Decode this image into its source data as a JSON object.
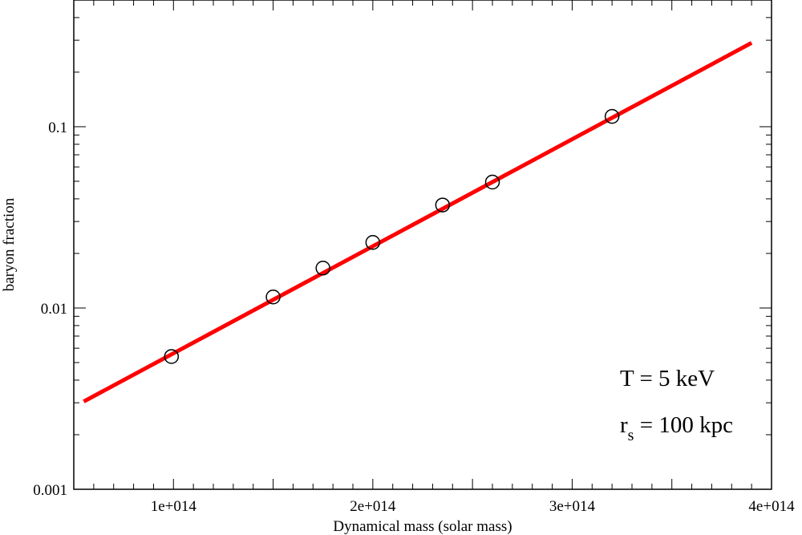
{
  "colors": {
    "fit_line": "#ff0000",
    "markers": "#000000",
    "axes": "#000000",
    "background": "#ffffff"
  },
  "chart_data": {
    "type": "scatter",
    "xlabel": "Dynamical mass (solar mass)",
    "ylabel": "baryon fraction",
    "xlim": [
      50000000000000.0,
      400000000000000.0
    ],
    "ylim": [
      0.001,
      0.5
    ],
    "yscale": "log",
    "grid": false,
    "x_ticks": [
      {
        "value": 100000000000000.0,
        "label": "1e+014"
      },
      {
        "value": 200000000000000.0,
        "label": "2e+014"
      },
      {
        "value": 300000000000000.0,
        "label": "3e+014"
      },
      {
        "value": 400000000000000.0,
        "label": "4e+014"
      }
    ],
    "y_ticks": [
      {
        "value": 0.001,
        "label": "0.001"
      },
      {
        "value": 0.01,
        "label": "0.01"
      },
      {
        "value": 0.1,
        "label": "0.1"
      }
    ],
    "series": [
      {
        "marker": "open-circle",
        "x": [
          99000000000000.0,
          150000000000000.0,
          175000000000000.0,
          200000000000000.0,
          235000000000000.0,
          260000000000000.0,
          320000000000000.0
        ],
        "y": [
          0.0054,
          0.0115,
          0.0166,
          0.023,
          0.037,
          0.0495,
          0.114
        ]
      },
      {
        "style": "line",
        "x": [
          55000000000000.0,
          390000000000000.0
        ],
        "y": [
          0.00305,
          0.29
        ]
      }
    ],
    "annotations": {
      "line1": "T = 5 keV",
      "line2_main": "r",
      "line2_sub": "s",
      "line2_rest": " = 100 kpc"
    }
  }
}
